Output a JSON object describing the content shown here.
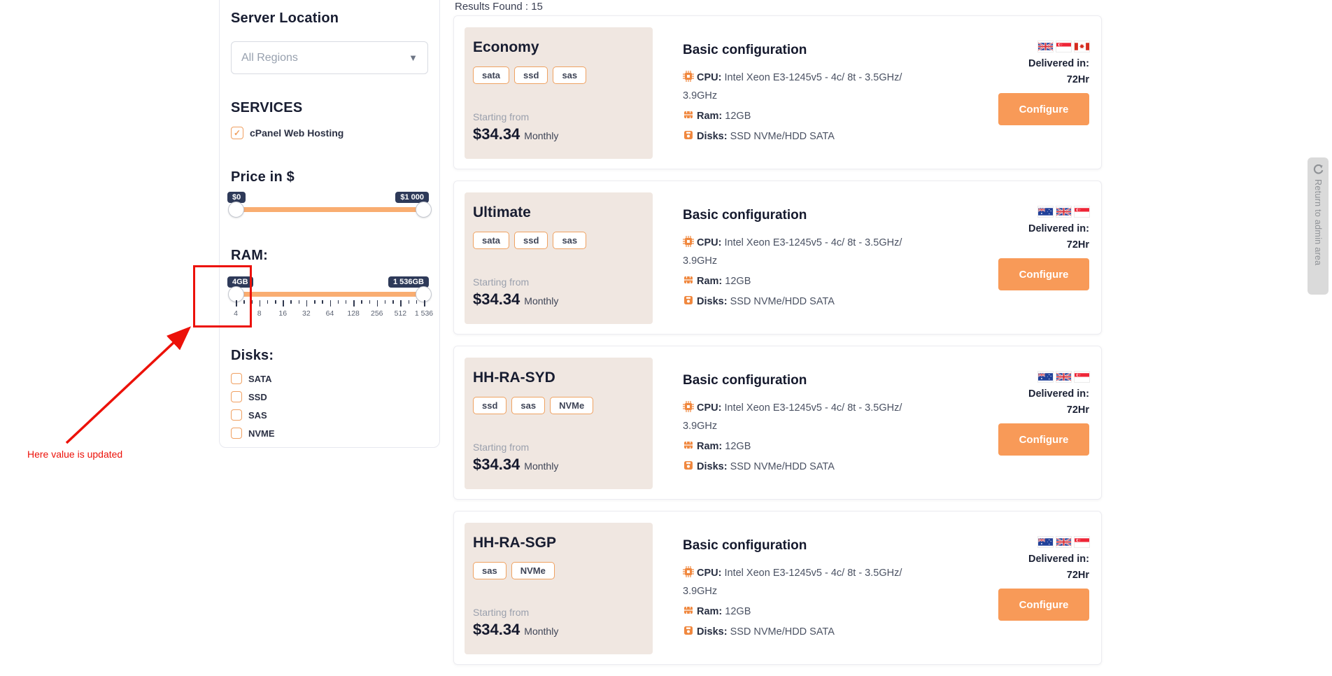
{
  "page": {
    "results_label": "Results Found : 15"
  },
  "sidebar": {
    "server_location": {
      "title": "Server Location",
      "dropdown_value": "All Regions"
    },
    "services": {
      "title": "SERVICES",
      "items": [
        {
          "label": "cPanel Web Hosting",
          "checked": true
        }
      ]
    },
    "price": {
      "title": "Price in $",
      "min_label": "$0",
      "max_label": "$1 000"
    },
    "ram": {
      "title": "RAM:",
      "min_label": "4GB",
      "max_label": "1 536GB",
      "ticks": [
        "4",
        "8",
        "16",
        "32",
        "64",
        "128",
        "256",
        "512",
        "1 536"
      ]
    },
    "disks": {
      "title": "Disks:",
      "options": [
        {
          "label": "SATA",
          "checked": false
        },
        {
          "label": "SSD",
          "checked": false
        },
        {
          "label": "SAS",
          "checked": false
        },
        {
          "label": "NVME",
          "checked": false
        }
      ]
    }
  },
  "annotation": {
    "text": "Here value is updated",
    "color": "#ec1109"
  },
  "cards": [
    {
      "name": "Economy",
      "tags": [
        "sata",
        "ssd",
        "sas"
      ],
      "starting_from": "Starting from",
      "price": "$34.34",
      "period": "Monthly",
      "config_title": "Basic configuration",
      "specs": {
        "cpu_label": "CPU:",
        "cpu": "Intel Xeon E3-1245v5 - 4c/ 8t - 3.5GHz/ 3.9GHz",
        "ram_label": "Ram:",
        "ram": "12GB",
        "disks_label": "Disks:",
        "disks": "SSD NVMe/HDD SATA"
      },
      "flags": [
        "uk",
        "singapore",
        "canada"
      ],
      "delivered_label": "Delivered in:",
      "delivered_value": "72Hr",
      "configure_label": "Configure"
    },
    {
      "name": "Ultimate",
      "tags": [
        "sata",
        "ssd",
        "sas"
      ],
      "starting_from": "Starting from",
      "price": "$34.34",
      "period": "Monthly",
      "config_title": "Basic configuration",
      "specs": {
        "cpu_label": "CPU:",
        "cpu": "Intel Xeon E3-1245v5 - 4c/ 8t - 3.5GHz/ 3.9GHz",
        "ram_label": "Ram:",
        "ram": "12GB",
        "disks_label": "Disks:",
        "disks": "SSD NVMe/HDD SATA"
      },
      "flags": [
        "australia",
        "uk",
        "singapore"
      ],
      "delivered_label": "Delivered in:",
      "delivered_value": "72Hr",
      "configure_label": "Configure"
    },
    {
      "name": "HH-RA-SYD",
      "tags": [
        "ssd",
        "sas",
        "NVMe"
      ],
      "starting_from": "Starting from",
      "price": "$34.34",
      "period": "Monthly",
      "config_title": "Basic configuration",
      "specs": {
        "cpu_label": "CPU:",
        "cpu": "Intel Xeon E3-1245v5 - 4c/ 8t - 3.5GHz/ 3.9GHz",
        "ram_label": "Ram:",
        "ram": "12GB",
        "disks_label": "Disks:",
        "disks": "SSD NVMe/HDD SATA"
      },
      "flags": [
        "australia",
        "uk",
        "singapore"
      ],
      "delivered_label": "Delivered in:",
      "delivered_value": "72Hr",
      "configure_label": "Configure"
    },
    {
      "name": "HH-RA-SGP",
      "tags": [
        "sas",
        "NVMe"
      ],
      "starting_from": "Starting from",
      "price": "$34.34",
      "period": "Monthly",
      "config_title": "Basic configuration",
      "specs": {
        "cpu_label": "CPU:",
        "cpu": "Intel Xeon E3-1245v5 - 4c/ 8t - 3.5GHz/ 3.9GHz",
        "ram_label": "Ram:",
        "ram": "12GB",
        "disks_label": "Disks:",
        "disks": "SSD NVMe/HDD SATA"
      },
      "flags": [
        "australia",
        "uk",
        "singapore"
      ],
      "delivered_label": "Delivered in:",
      "delivered_value": "72Hr",
      "configure_label": "Configure"
    }
  ],
  "return_tab": {
    "label": "Return to admin area"
  },
  "colors": {
    "accent_orange": "#f89a58",
    "track_orange": "#f9ad71",
    "badge_navy": "#2e3a59",
    "panel_beige": "#f0e7e1",
    "annotation_red": "#ec1109"
  }
}
